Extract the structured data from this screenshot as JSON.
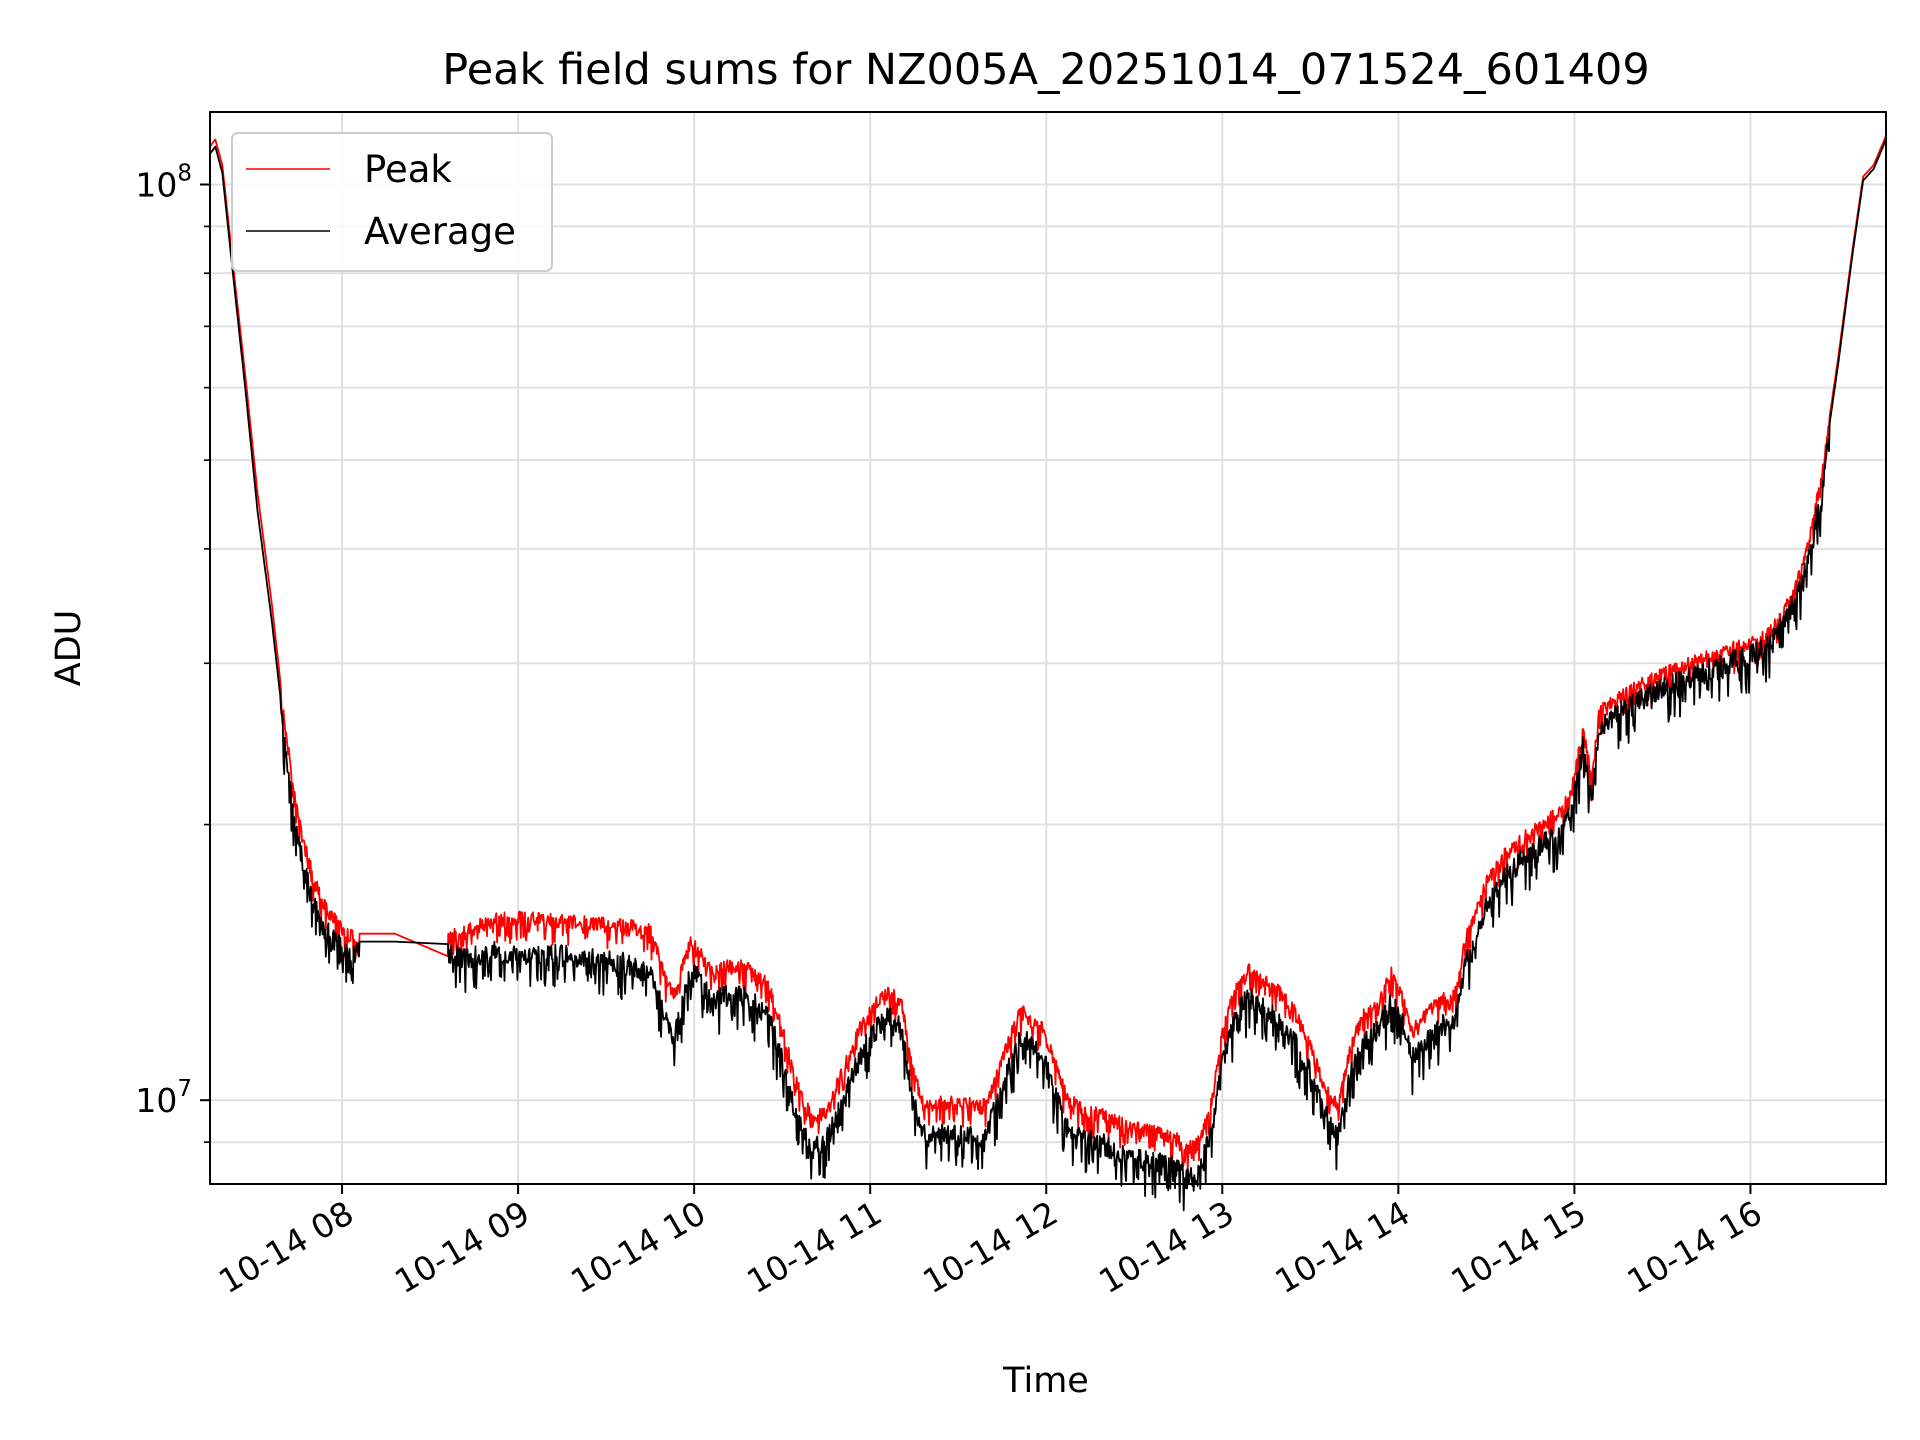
{
  "chart_data": {
    "type": "line",
    "title": "Peak field sums for NZ005A_20251014_071524_601409",
    "xlabel": "Time",
    "ylabel": "ADU",
    "yscale": "log",
    "grid": true,
    "legend_position": "upper-left",
    "x_unit": "hours since 10-14 07:00",
    "xlim": [
      0.25,
      9.77
    ],
    "ylim": [
      8100000,
      120000000
    ],
    "x_ticks": [
      {
        "value": 1,
        "label": "10-14 08"
      },
      {
        "value": 2,
        "label": "10-14 09"
      },
      {
        "value": 3,
        "label": "10-14 10"
      },
      {
        "value": 4,
        "label": "10-14 11"
      },
      {
        "value": 5,
        "label": "10-14 12"
      },
      {
        "value": 6,
        "label": "10-14 13"
      },
      {
        "value": 7,
        "label": "10-14 14"
      },
      {
        "value": 8,
        "label": "10-14 15"
      },
      {
        "value": 9,
        "label": "10-14 16"
      }
    ],
    "y_ticks": [
      {
        "value": 10000000,
        "base": "10",
        "exp": "7"
      },
      {
        "value": 100000000,
        "base": "10",
        "exp": "8"
      }
    ],
    "y_minor_ticks": [
      9000000,
      20000000,
      30000000,
      40000000,
      50000000,
      60000000,
      70000000,
      80000000,
      90000000
    ],
    "series": [
      {
        "name": "Peak",
        "color": "#ff0000",
        "points": [
          [
            0.25,
            110000000
          ],
          [
            0.28,
            112000000
          ],
          [
            0.32,
            105000000
          ],
          [
            0.38,
            82000000
          ],
          [
            0.45,
            62000000
          ],
          [
            0.52,
            46000000
          ],
          [
            0.6,
            35000000
          ],
          [
            0.66,
            27500000
          ],
          [
            0.72,
            22500000
          ],
          [
            0.78,
            19500000
          ],
          [
            0.84,
            17800000
          ],
          [
            0.9,
            16600000
          ],
          [
            0.96,
            16000000
          ],
          [
            1.02,
            15500000
          ],
          [
            1.1,
            15200000
          ],
          [
            1.3,
            15200000
          ],
          [
            1.6,
            15300000
          ],
          [
            1.72,
            15600000
          ],
          [
            1.85,
            16000000
          ],
          [
            2.0,
            16100000
          ],
          [
            2.2,
            16000000
          ],
          [
            2.4,
            15900000
          ],
          [
            2.6,
            15800000
          ],
          [
            2.75,
            15600000
          ],
          [
            2.82,
            14200000
          ],
          [
            2.88,
            13200000
          ],
          [
            2.94,
            14300000
          ],
          [
            2.98,
            15300000
          ],
          [
            3.04,
            14700000
          ],
          [
            3.1,
            14000000
          ],
          [
            3.2,
            14300000
          ],
          [
            3.3,
            14200000
          ],
          [
            3.42,
            13600000
          ],
          [
            3.5,
            12200000
          ],
          [
            3.56,
            11000000
          ],
          [
            3.62,
            10100000
          ],
          [
            3.68,
            9700000
          ],
          [
            3.75,
            9900000
          ],
          [
            3.85,
            11000000
          ],
          [
            3.95,
            12300000
          ],
          [
            4.05,
            13100000
          ],
          [
            4.12,
            13400000
          ],
          [
            4.18,
            12900000
          ],
          [
            4.24,
            11000000
          ],
          [
            4.3,
            10100000
          ],
          [
            4.4,
            10100000
          ],
          [
            4.55,
            10100000
          ],
          [
            4.64,
            10000000
          ],
          [
            4.72,
            10800000
          ],
          [
            4.8,
            12000000
          ],
          [
            4.86,
            12800000
          ],
          [
            4.92,
            12400000
          ],
          [
            4.98,
            12200000
          ],
          [
            5.06,
            11000000
          ],
          [
            5.12,
            10200000
          ],
          [
            5.22,
            9900000
          ],
          [
            5.32,
            9800000
          ],
          [
            5.45,
            9550000
          ],
          [
            5.6,
            9400000
          ],
          [
            5.72,
            9300000
          ],
          [
            5.8,
            9000000
          ],
          [
            5.86,
            9100000
          ],
          [
            5.94,
            10100000
          ],
          [
            6.0,
            12000000
          ],
          [
            6.08,
            13600000
          ],
          [
            6.15,
            14100000
          ],
          [
            6.22,
            13800000
          ],
          [
            6.3,
            13500000
          ],
          [
            6.4,
            12800000
          ],
          [
            6.5,
            11700000
          ],
          [
            6.56,
            10800000
          ],
          [
            6.62,
            10200000
          ],
          [
            6.66,
            10000000
          ],
          [
            6.72,
            11500000
          ],
          [
            6.8,
            12600000
          ],
          [
            6.88,
            12900000
          ],
          [
            6.96,
            14000000
          ],
          [
            7.02,
            13200000
          ],
          [
            7.08,
            12100000
          ],
          [
            7.15,
            12600000
          ],
          [
            7.25,
            13100000
          ],
          [
            7.32,
            13200000
          ],
          [
            7.38,
            15200000
          ],
          [
            7.5,
            17600000
          ],
          [
            7.6,
            18800000
          ],
          [
            7.7,
            19600000
          ],
          [
            7.8,
            20300000
          ],
          [
            7.92,
            21000000
          ],
          [
            7.98,
            22000000
          ],
          [
            8.05,
            25800000
          ],
          [
            8.1,
            22800000
          ],
          [
            8.14,
            27000000
          ],
          [
            8.3,
            28400000
          ],
          [
            8.5,
            29700000
          ],
          [
            8.7,
            30700000
          ],
          [
            8.9,
            31700000
          ],
          [
            9.0,
            32000000
          ],
          [
            9.1,
            32800000
          ],
          [
            9.2,
            35000000
          ],
          [
            9.3,
            39000000
          ],
          [
            9.4,
            48000000
          ],
          [
            9.5,
            65000000
          ],
          [
            9.58,
            85000000
          ],
          [
            9.64,
            102000000
          ],
          [
            9.7,
            105000000
          ],
          [
            9.77,
            113000000
          ]
        ]
      },
      {
        "name": "Average",
        "color": "#000000",
        "points": [
          [
            0.25,
            108000000
          ],
          [
            0.28,
            110000000
          ],
          [
            0.32,
            103000000
          ],
          [
            0.38,
            80000000
          ],
          [
            0.45,
            60000000
          ],
          [
            0.52,
            44000000
          ],
          [
            0.6,
            33500000
          ],
          [
            0.66,
            26500000
          ],
          [
            0.72,
            21500000
          ],
          [
            0.78,
            18500000
          ],
          [
            0.84,
            16800000
          ],
          [
            0.9,
            15800000
          ],
          [
            0.96,
            15300000
          ],
          [
            1.02,
            15000000
          ],
          [
            1.1,
            14900000
          ],
          [
            1.3,
            14900000
          ],
          [
            1.6,
            14900000
          ],
          [
            1.72,
            14700000
          ],
          [
            1.85,
            14900000
          ],
          [
            2.0,
            14900000
          ],
          [
            2.2,
            14800000
          ],
          [
            2.4,
            14700000
          ],
          [
            2.6,
            14500000
          ],
          [
            2.75,
            14200000
          ],
          [
            2.82,
            13000000
          ],
          [
            2.88,
            12000000
          ],
          [
            2.94,
            13300000
          ],
          [
            2.98,
            14300000
          ],
          [
            3.04,
            13800000
          ],
          [
            3.1,
            13200000
          ],
          [
            3.2,
            13400000
          ],
          [
            3.3,
            13300000
          ],
          [
            3.42,
            12700000
          ],
          [
            3.5,
            11400000
          ],
          [
            3.56,
            10200000
          ],
          [
            3.62,
            9400000
          ],
          [
            3.68,
            9100000
          ],
          [
            3.75,
            9300000
          ],
          [
            3.85,
            10300000
          ],
          [
            3.95,
            11600000
          ],
          [
            4.05,
            12400000
          ],
          [
            4.12,
            12700000
          ],
          [
            4.18,
            12200000
          ],
          [
            4.24,
            10300000
          ],
          [
            4.3,
            9400000
          ],
          [
            4.4,
            9400000
          ],
          [
            4.55,
            9400000
          ],
          [
            4.64,
            9300000
          ],
          [
            4.72,
            10200000
          ],
          [
            4.8,
            11300000
          ],
          [
            4.86,
            12100000
          ],
          [
            4.92,
            11700000
          ],
          [
            4.98,
            11500000
          ],
          [
            5.06,
            10300000
          ],
          [
            5.12,
            9600000
          ],
          [
            5.22,
            9300000
          ],
          [
            5.32,
            9200000
          ],
          [
            5.45,
            8950000
          ],
          [
            5.6,
            8800000
          ],
          [
            5.72,
            8700000
          ],
          [
            5.8,
            8450000
          ],
          [
            5.86,
            8550000
          ],
          [
            5.94,
            9500000
          ],
          [
            6.0,
            11300000
          ],
          [
            6.08,
            12800000
          ],
          [
            6.15,
            13300000
          ],
          [
            6.22,
            13000000
          ],
          [
            6.3,
            12700000
          ],
          [
            6.4,
            12000000
          ],
          [
            6.5,
            11000000
          ],
          [
            6.56,
            10200000
          ],
          [
            6.62,
            9600000
          ],
          [
            6.66,
            9400000
          ],
          [
            6.72,
            10800000
          ],
          [
            6.8,
            11900000
          ],
          [
            6.88,
            12200000
          ],
          [
            6.96,
            13200000
          ],
          [
            7.02,
            12500000
          ],
          [
            7.08,
            11400000
          ],
          [
            7.15,
            11900000
          ],
          [
            7.25,
            12400000
          ],
          [
            7.32,
            12500000
          ],
          [
            7.38,
            14500000
          ],
          [
            7.5,
            16800000
          ],
          [
            7.6,
            18000000
          ],
          [
            7.7,
            18800000
          ],
          [
            7.8,
            19500000
          ],
          [
            7.92,
            20200000
          ],
          [
            7.98,
            21200000
          ],
          [
            8.05,
            25000000
          ],
          [
            8.1,
            22000000
          ],
          [
            8.14,
            26200000
          ],
          [
            8.3,
            27600000
          ],
          [
            8.5,
            29000000
          ],
          [
            8.7,
            30000000
          ],
          [
            8.9,
            31000000
          ],
          [
            9.0,
            31400000
          ],
          [
            9.1,
            32200000
          ],
          [
            9.2,
            34300000
          ],
          [
            9.3,
            38200000
          ],
          [
            9.4,
            47000000
          ],
          [
            9.5,
            64000000
          ],
          [
            9.58,
            84000000
          ],
          [
            9.64,
            101000000
          ],
          [
            9.7,
            104000000
          ],
          [
            9.77,
            112000000
          ]
        ]
      }
    ]
  }
}
